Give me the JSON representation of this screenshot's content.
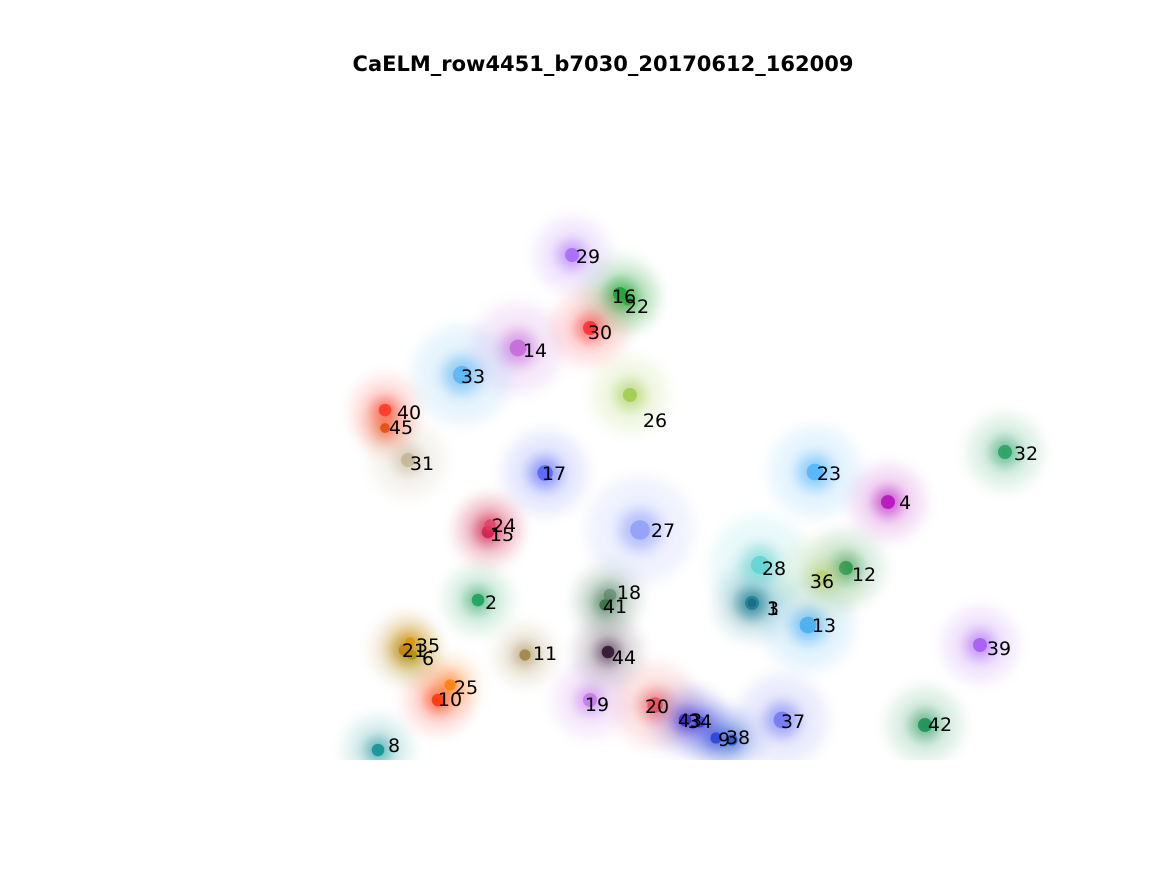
{
  "figure": {
    "title": "CaELM_row4451_b7030_20170612_162009"
  },
  "cells": [
    {
      "id": "1",
      "color": "#0e7a8c"
    },
    {
      "id": "2",
      "color": "#0a9950"
    },
    {
      "id": "3",
      "color": "#0c5a7a"
    },
    {
      "id": "4",
      "color": "#b000b8"
    },
    {
      "id": "6",
      "color": "#8aa000"
    },
    {
      "id": "8",
      "color": "#008a8c"
    },
    {
      "id": "9",
      "color": "#1a3ad8"
    },
    {
      "id": "10",
      "color": "#ff1a00"
    },
    {
      "id": "11",
      "color": "#9a7a3a"
    },
    {
      "id": "12",
      "color": "#0a8a3a"
    },
    {
      "id": "13",
      "color": "#3aa8f0"
    },
    {
      "id": "14",
      "color": "#c060d8"
    },
    {
      "id": "15",
      "color": "#c00038"
    },
    {
      "id": "16",
      "color": "#0a9a2a"
    },
    {
      "id": "17",
      "color": "#4a5af8"
    },
    {
      "id": "18",
      "color": "#7a9a8a"
    },
    {
      "id": "19",
      "color": "#c070e8"
    },
    {
      "id": "20",
      "color": "#f04848"
    },
    {
      "id": "21",
      "color": "#b07a10"
    },
    {
      "id": "22",
      "color": "#2aa830"
    },
    {
      "id": "23",
      "color": "#4ab0f8"
    },
    {
      "id": "24",
      "color": "#e04060"
    },
    {
      "id": "25",
      "color": "#ff7a00"
    },
    {
      "id": "26",
      "color": "#9ac840"
    },
    {
      "id": "27",
      "color": "#8a9af8"
    },
    {
      "id": "28",
      "color": "#5ad0d0"
    },
    {
      "id": "29",
      "color": "#a060f8"
    },
    {
      "id": "30",
      "color": "#ff2020"
    },
    {
      "id": "31",
      "color": "#c0b090"
    },
    {
      "id": "32",
      "color": "#1a9a5a"
    },
    {
      "id": "33",
      "color": "#50b0f0"
    },
    {
      "id": "34",
      "color": "#3a40e0"
    },
    {
      "id": "35",
      "color": "#e09000"
    },
    {
      "id": "36",
      "color": "#b8d070"
    },
    {
      "id": "37",
      "color": "#6a70f0"
    },
    {
      "id": "38",
      "color": "#1a50c8"
    },
    {
      "id": "39",
      "color": "#a050f0"
    },
    {
      "id": "40",
      "color": "#ff2a1a"
    },
    {
      "id": "41",
      "color": "#2a6a3a"
    },
    {
      "id": "42",
      "color": "#0a8a4a"
    },
    {
      "id": "43",
      "color": "#3020d0"
    },
    {
      "id": "44",
      "color": "#200020"
    },
    {
      "id": "45",
      "color": "#e04000"
    }
  ]
}
